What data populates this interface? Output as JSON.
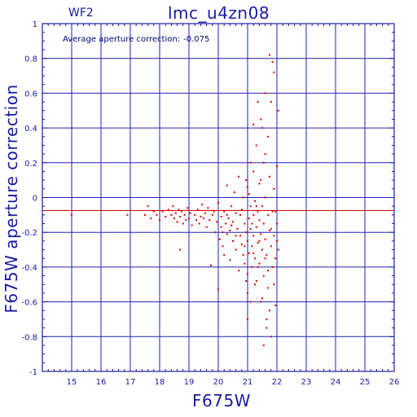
{
  "chart_data": {
    "type": "scatter",
    "panel_label": "WF2",
    "title": "lmc_u4zn08",
    "annotation_label": "Average aperture correction:",
    "annotation_value": "-0.075",
    "xlabel": "F675W",
    "ylabel": "F675W aperture correction",
    "xlim": [
      14,
      26
    ],
    "ylim": [
      -1,
      1
    ],
    "x_ticks": [
      "15",
      "16",
      "17",
      "18",
      "19",
      "20",
      "21",
      "22",
      "23",
      "24",
      "25",
      "26"
    ],
    "y_ticks": [
      "-1",
      "-0.8",
      "-0.6",
      "-0.4",
      "-0.2",
      "0",
      "0.2",
      "0.4",
      "0.6",
      "0.8",
      "1"
    ],
    "grid": true,
    "reference_line_y": -0.075,
    "colors": {
      "axis": "#1a1aa6",
      "grid": "#2020b8",
      "points": "#dd0000",
      "reference_line": "#dd0000"
    },
    "points": [
      [
        15.0,
        -0.1
      ],
      [
        16.9,
        -0.1
      ],
      [
        17.5,
        -0.1
      ],
      [
        17.6,
        -0.05
      ],
      [
        17.7,
        -0.12
      ],
      [
        17.8,
        -0.08
      ],
      [
        17.9,
        -0.1
      ],
      [
        18.0,
        -0.13
      ],
      [
        18.1,
        -0.08
      ],
      [
        18.2,
        -0.11
      ],
      [
        18.3,
        -0.07
      ],
      [
        18.4,
        -0.1
      ],
      [
        18.45,
        -0.05
      ],
      [
        18.5,
        -0.12
      ],
      [
        18.55,
        -0.09
      ],
      [
        18.6,
        -0.14
      ],
      [
        18.65,
        -0.07
      ],
      [
        18.7,
        -0.11
      ],
      [
        18.7,
        -0.3
      ],
      [
        18.75,
        -0.08
      ],
      [
        18.8,
        -0.15
      ],
      [
        18.85,
        -0.1
      ],
      [
        18.9,
        -0.13
      ],
      [
        18.95,
        -0.06
      ],
      [
        19.0,
        -0.12
      ],
      [
        19.05,
        -0.09
      ],
      [
        19.1,
        -0.16
      ],
      [
        19.2,
        -0.1
      ],
      [
        19.25,
        -0.13
      ],
      [
        19.3,
        -0.07
      ],
      [
        19.35,
        -0.15
      ],
      [
        19.4,
        -0.11
      ],
      [
        19.45,
        -0.04
      ],
      [
        19.5,
        -0.12
      ],
      [
        19.55,
        -0.09
      ],
      [
        19.6,
        -0.17
      ],
      [
        19.65,
        -0.06
      ],
      [
        19.7,
        -0.13
      ],
      [
        19.75,
        -0.39
      ],
      [
        19.8,
        -0.1
      ],
      [
        19.85,
        -0.08
      ],
      [
        19.9,
        -0.2
      ],
      [
        19.95,
        -0.14
      ],
      [
        20.0,
        -0.03
      ],
      [
        20.0,
        -0.53
      ],
      [
        20.05,
        -0.24
      ],
      [
        20.1,
        -0.11
      ],
      [
        20.1,
        -0.17
      ],
      [
        20.15,
        -0.28
      ],
      [
        20.2,
        -0.08
      ],
      [
        20.2,
        -0.33
      ],
      [
        20.25,
        -0.15
      ],
      [
        20.3,
        -0.21
      ],
      [
        20.3,
        0.07
      ],
      [
        20.35,
        -0.12
      ],
      [
        20.4,
        -0.19
      ],
      [
        20.4,
        -0.36
      ],
      [
        20.45,
        -0.05
      ],
      [
        20.5,
        -0.25
      ],
      [
        20.5,
        -0.14
      ],
      [
        20.55,
        0.03
      ],
      [
        20.6,
        -0.3
      ],
      [
        20.6,
        -0.09
      ],
      [
        20.65,
        -0.18
      ],
      [
        20.7,
        -0.42
      ],
      [
        20.7,
        0.12
      ],
      [
        20.75,
        -0.22
      ],
      [
        20.8,
        -0.07
      ],
      [
        20.8,
        -0.27
      ],
      [
        20.85,
        -0.33
      ],
      [
        20.85,
        0.0
      ],
      [
        20.9,
        -0.15
      ],
      [
        20.9,
        -0.38
      ],
      [
        20.95,
        -0.2
      ],
      [
        20.95,
        0.1
      ],
      [
        21.0,
        -0.25
      ],
      [
        21.0,
        -0.44
      ],
      [
        21.0,
        -0.55
      ],
      [
        21.0,
        -0.7
      ],
      [
        21.0,
        0.06
      ],
      [
        21.05,
        -0.12
      ],
      [
        21.05,
        -0.32
      ],
      [
        21.1,
        -0.18
      ],
      [
        21.1,
        -0.05
      ],
      [
        21.1,
        0.2
      ],
      [
        21.15,
        -0.28
      ],
      [
        21.15,
        -0.4
      ],
      [
        21.2,
        -0.1
      ],
      [
        21.2,
        -0.22
      ],
      [
        21.2,
        0.15
      ],
      [
        21.25,
        -0.35
      ],
      [
        21.25,
        -0.02
      ],
      [
        21.3,
        -0.17
      ],
      [
        21.3,
        -0.48
      ],
      [
        21.3,
        0.3
      ],
      [
        21.35,
        -0.08
      ],
      [
        21.35,
        -0.26
      ],
      [
        21.4,
        -0.13
      ],
      [
        21.4,
        -0.38
      ],
      [
        21.4,
        0.08
      ],
      [
        21.45,
        -0.21
      ],
      [
        21.45,
        -0.6
      ],
      [
        21.5,
        -0.05
      ],
      [
        21.5,
        -0.3
      ],
      [
        21.5,
        0.4
      ],
      [
        21.55,
        -0.15
      ],
      [
        21.55,
        -0.45
      ],
      [
        21.6,
        -0.24
      ],
      [
        21.6,
        0.0
      ],
      [
        21.6,
        0.25
      ],
      [
        21.65,
        -0.33
      ],
      [
        21.65,
        -0.7
      ],
      [
        21.7,
        -0.1
      ],
      [
        21.7,
        -0.52
      ],
      [
        21.7,
        0.35
      ],
      [
        21.75,
        -0.19
      ],
      [
        21.75,
        0.12
      ],
      [
        21.8,
        -0.28
      ],
      [
        21.8,
        -0.8
      ],
      [
        21.8,
        0.55
      ],
      [
        21.85,
        -0.08
      ],
      [
        21.85,
        -0.4
      ],
      [
        21.9,
        -0.22
      ],
      [
        21.9,
        0.05
      ],
      [
        21.9,
        0.72
      ],
      [
        21.95,
        -0.35
      ],
      [
        21.95,
        -0.62
      ],
      [
        22.0,
        -0.15
      ],
      [
        22.0,
        -0.25
      ],
      [
        22.0,
        0.18
      ],
      [
        22.05,
        -0.3
      ],
      [
        22.05,
        0.5
      ],
      [
        21.85,
        0.78
      ],
      [
        21.6,
        0.6
      ],
      [
        21.45,
        0.45
      ],
      [
        21.2,
        0.42
      ],
      [
        21.35,
        0.55
      ],
      [
        21.75,
        0.82
      ],
      [
        21.55,
        -0.85
      ],
      [
        21.65,
        -0.75
      ],
      [
        21.75,
        -0.65
      ],
      [
        21.5,
        -0.58
      ],
      [
        21.25,
        -0.5
      ],
      [
        21.1,
        -0.6
      ],
      [
        20.95,
        -0.48
      ],
      [
        20.9,
        -0.28
      ],
      [
        20.75,
        -0.1
      ],
      [
        20.6,
        -0.22
      ],
      [
        20.45,
        -0.16
      ],
      [
        20.3,
        -0.1
      ],
      [
        20.15,
        -0.2
      ],
      [
        21.3,
        -0.05
      ],
      [
        21.15,
        -0.15
      ],
      [
        21.4,
        -0.25
      ],
      [
        21.6,
        -0.35
      ],
      [
        21.8,
        -0.18
      ],
      [
        21.95,
        -0.08
      ],
      [
        21.05,
        0.02
      ],
      [
        21.2,
        -0.32
      ],
      [
        21.45,
        0.1
      ],
      [
        21.7,
        -0.42
      ],
      [
        21.9,
        -0.5
      ],
      [
        21.55,
        0.2
      ],
      [
        21.35,
        -0.4
      ]
    ]
  }
}
